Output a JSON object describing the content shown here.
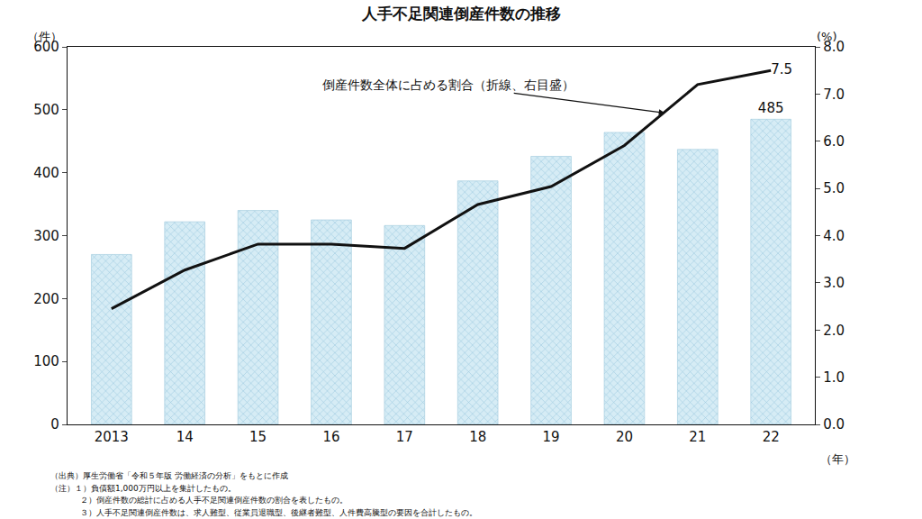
{
  "chart_data": {
    "type": "bar",
    "title": "人手不足関連倒産件数の推移",
    "categories": [
      "2013",
      "14",
      "15",
      "16",
      "17",
      "18",
      "19",
      "20",
      "21",
      "22"
    ],
    "series": [
      {
        "type": "bar",
        "color": "#d6ecf5",
        "axis": "y",
        "values": [
          270,
          322,
          340,
          325,
          316,
          387,
          426,
          464,
          437,
          485
        ],
        "value_labels": [
          null,
          null,
          null,
          null,
          null,
          null,
          null,
          null,
          null,
          "485"
        ]
      },
      {
        "type": "line",
        "color": "#111111",
        "axis": "y2",
        "values": [
          2.45,
          3.27,
          3.82,
          3.82,
          3.73,
          4.66,
          5.04,
          5.91,
          7.2,
          7.5
        ],
        "value_labels": [
          null,
          null,
          null,
          null,
          null,
          null,
          null,
          null,
          null,
          "7.5"
        ]
      }
    ],
    "ylim": [
      0,
      600
    ],
    "yticks": [
      0,
      100,
      200,
      300,
      400,
      500,
      600
    ],
    "y2lim": [
      0,
      8
    ],
    "y2ticks": [
      {
        "value": 0,
        "label": "0.0"
      },
      {
        "value": 1,
        "label": "1.0"
      },
      {
        "value": 2,
        "label": "2.0"
      },
      {
        "value": 3,
        "label": "3.0"
      },
      {
        "value": 4,
        "label": "4.0"
      },
      {
        "value": 5,
        "label": "5.0"
      },
      {
        "value": 6,
        "label": "6.0"
      },
      {
        "value": 7,
        "label": "7.0"
      },
      {
        "value": 8,
        "label": "8.0"
      }
    ],
    "y_label": "（件）",
    "y2_label": "(%)",
    "x_label": "（年）",
    "annotations": [
      "倒産件数全体に占める割合（折線、右目盛）"
    ],
    "notes": [
      "（出典）厚生労働省「令和５年版 労働経済の分析」をもとに作成",
      "（注）１）負債額1,000万円以上を集計したもの。",
      "２）倒産件数の総計に占める人手不足関連倒産件数の割合を表したもの。",
      "３）人手不足関連倒産件数は、求人難型、従業員退職型、後継者難型、人件費高騰型の要因を合計したもの。"
    ],
    "grid": false,
    "data_labels": true
  }
}
